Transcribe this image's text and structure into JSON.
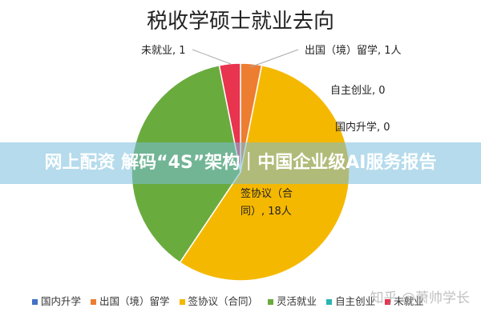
{
  "chart_data": {
    "type": "pie",
    "title": "税收学硕士就业去向",
    "categories": [
      "国内升学",
      "出国（境）留学",
      "签协议（合同）",
      "灵活就业",
      "自主创业",
      "未就业"
    ],
    "values": [
      0,
      1,
      18,
      12,
      0,
      1
    ],
    "data_labels": [
      "国内升学, 0",
      "出国（境）留学, 1人",
      "签协议（合同）, 18人",
      null,
      "自主创业, 0",
      "未就业, 1"
    ],
    "colors": [
      "#4472c4",
      "#ed7d31",
      "#f5b800",
      "#6aab3e",
      "#2bb3b3",
      "#e8344e"
    ],
    "legend": "bottom"
  },
  "overlay_banner": "网上配资 解码“4S”架构｜中国企业级AI服务报告",
  "watermark": "知乎 @萧帅学长"
}
